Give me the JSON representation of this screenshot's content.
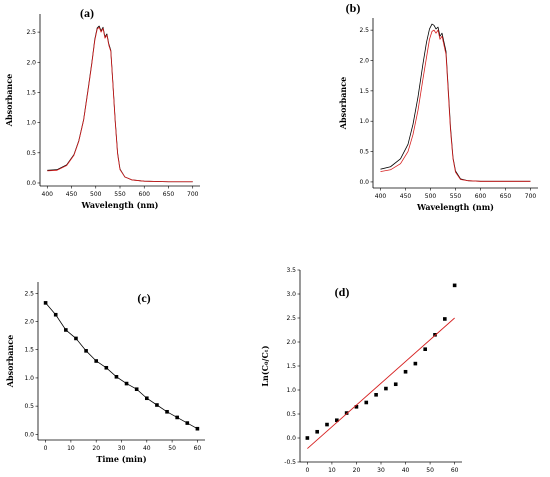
{
  "chart_data": [
    {
      "panel": "(a)",
      "type": "line",
      "xlabel": "Wavelength (nm)",
      "ylabel": "Absorbance",
      "xlim": [
        385,
        715
      ],
      "ylim": [
        -0.05,
        2.8
      ],
      "xticks": [
        400,
        450,
        500,
        550,
        600,
        650,
        700
      ],
      "yticks": [
        0.0,
        0.5,
        1.0,
        1.5,
        2.0,
        2.5
      ],
      "ytick_labels": [
        "0.0",
        "0.5",
        "1.0",
        "1.5",
        "2.0",
        "2.5"
      ],
      "series": [
        {
          "color": "#000000",
          "x": [
            400,
            420,
            440,
            455,
            465,
            475,
            485,
            492,
            498,
            503,
            507,
            511,
            515,
            519,
            523,
            527,
            531,
            535,
            540,
            545,
            550,
            560,
            575,
            600,
            650,
            700
          ],
          "y": [
            0.21,
            0.22,
            0.3,
            0.47,
            0.7,
            1.05,
            1.6,
            2.0,
            2.38,
            2.57,
            2.6,
            2.52,
            2.58,
            2.42,
            2.47,
            2.3,
            2.2,
            1.7,
            1.05,
            0.5,
            0.23,
            0.1,
            0.05,
            0.03,
            0.02,
            0.02
          ]
        },
        {
          "color": "#d62020",
          "x": [
            400,
            420,
            440,
            455,
            465,
            475,
            485,
            492,
            498,
            503,
            507,
            511,
            515,
            519,
            523,
            527,
            531,
            535,
            540,
            545,
            550,
            560,
            575,
            600,
            650,
            700
          ],
          "y": [
            0.2,
            0.21,
            0.29,
            0.46,
            0.69,
            1.04,
            1.58,
            1.98,
            2.36,
            2.55,
            2.58,
            2.5,
            2.56,
            2.4,
            2.45,
            2.28,
            2.18,
            1.68,
            1.03,
            0.48,
            0.22,
            0.1,
            0.05,
            0.03,
            0.02,
            0.02
          ]
        }
      ]
    },
    {
      "panel": "(b)",
      "type": "line",
      "xlabel": "Wavelength (nm)",
      "ylabel": "Absorbance",
      "xlim": [
        385,
        715
      ],
      "ylim": [
        -0.1,
        2.7
      ],
      "xticks": [
        400,
        450,
        500,
        550,
        600,
        650,
        700
      ],
      "yticks": [
        0.0,
        0.5,
        1.0,
        1.5,
        2.0,
        2.5
      ],
      "ytick_labels": [
        "0.0",
        "0.5",
        "1.0",
        "1.5",
        "2.0",
        "2.5"
      ],
      "series": [
        {
          "color": "#000000",
          "x": [
            400,
            420,
            440,
            455,
            465,
            475,
            485,
            492,
            498,
            503,
            507,
            511,
            515,
            519,
            523,
            527,
            531,
            535,
            540,
            545,
            550,
            560,
            575,
            600,
            650,
            700
          ],
          "y": [
            0.21,
            0.25,
            0.38,
            0.62,
            0.95,
            1.4,
            1.95,
            2.3,
            2.52,
            2.6,
            2.58,
            2.52,
            2.55,
            2.4,
            2.45,
            2.3,
            2.15,
            1.6,
            0.9,
            0.4,
            0.18,
            0.05,
            0.02,
            0.01,
            0.01,
            0.01
          ]
        },
        {
          "color": "#d62020",
          "x": [
            400,
            420,
            440,
            455,
            465,
            475,
            485,
            492,
            498,
            503,
            507,
            511,
            515,
            519,
            523,
            527,
            531,
            535,
            540,
            545,
            550,
            560,
            575,
            600,
            650,
            700
          ],
          "y": [
            0.17,
            0.2,
            0.3,
            0.5,
            0.78,
            1.18,
            1.7,
            2.05,
            2.35,
            2.48,
            2.5,
            2.45,
            2.5,
            2.35,
            2.4,
            2.25,
            2.1,
            1.55,
            0.85,
            0.38,
            0.16,
            0.04,
            0.02,
            0.01,
            0.01,
            0.01
          ]
        }
      ]
    },
    {
      "panel": "(c)",
      "type": "line",
      "xlabel": "Time (min)",
      "ylabel": "Absorbance",
      "xlim": [
        -3,
        63
      ],
      "ylim": [
        -0.1,
        2.7
      ],
      "xticks": [
        0,
        10,
        20,
        30,
        40,
        50,
        60
      ],
      "yticks": [
        0.0,
        0.5,
        1.0,
        1.5,
        2.0,
        2.5
      ],
      "ytick_labels": [
        "0.0",
        "0.5",
        "1.0",
        "1.5",
        "2.0",
        "2.5"
      ],
      "series": [
        {
          "color": "#000000",
          "marker": "square",
          "x": [
            0,
            4,
            8,
            12,
            16,
            20,
            24,
            28,
            32,
            36,
            40,
            44,
            48,
            52,
            56,
            60
          ],
          "y": [
            2.33,
            2.12,
            1.85,
            1.7,
            1.48,
            1.3,
            1.18,
            1.02,
            0.9,
            0.8,
            0.64,
            0.52,
            0.4,
            0.3,
            0.2,
            0.1
          ]
        }
      ]
    },
    {
      "panel": "(d)",
      "type": "scatter",
      "xlabel": "Time(min)",
      "ylabel": "Ln(C₀/Cₜ)",
      "xlim": [
        -3,
        63
      ],
      "ylim": [
        -0.5,
        3.5
      ],
      "xticks": [
        0,
        10,
        20,
        30,
        40,
        50,
        60
      ],
      "yticks": [
        -0.5,
        0.0,
        0.5,
        1.0,
        1.5,
        2.0,
        2.5,
        3.0,
        3.5
      ],
      "ytick_labels": [
        "-0.5",
        "0.0",
        "0.5",
        "1.0",
        "1.5",
        "2.0",
        "2.5",
        "3.0",
        "3.5"
      ],
      "series": [
        {
          "color": "#000000",
          "marker": "square",
          "x": [
            0,
            4,
            8,
            12,
            16,
            20,
            24,
            28,
            32,
            36,
            40,
            44,
            48,
            52,
            56,
            60
          ],
          "y": [
            0.0,
            0.13,
            0.28,
            0.37,
            0.52,
            0.65,
            0.74,
            0.9,
            1.03,
            1.12,
            1.38,
            1.55,
            1.85,
            2.15,
            2.48,
            3.18
          ]
        },
        {
          "color": "#d62020",
          "fit": "linear",
          "x": [
            0,
            60
          ],
          "y": [
            -0.22,
            2.5
          ]
        }
      ]
    }
  ]
}
